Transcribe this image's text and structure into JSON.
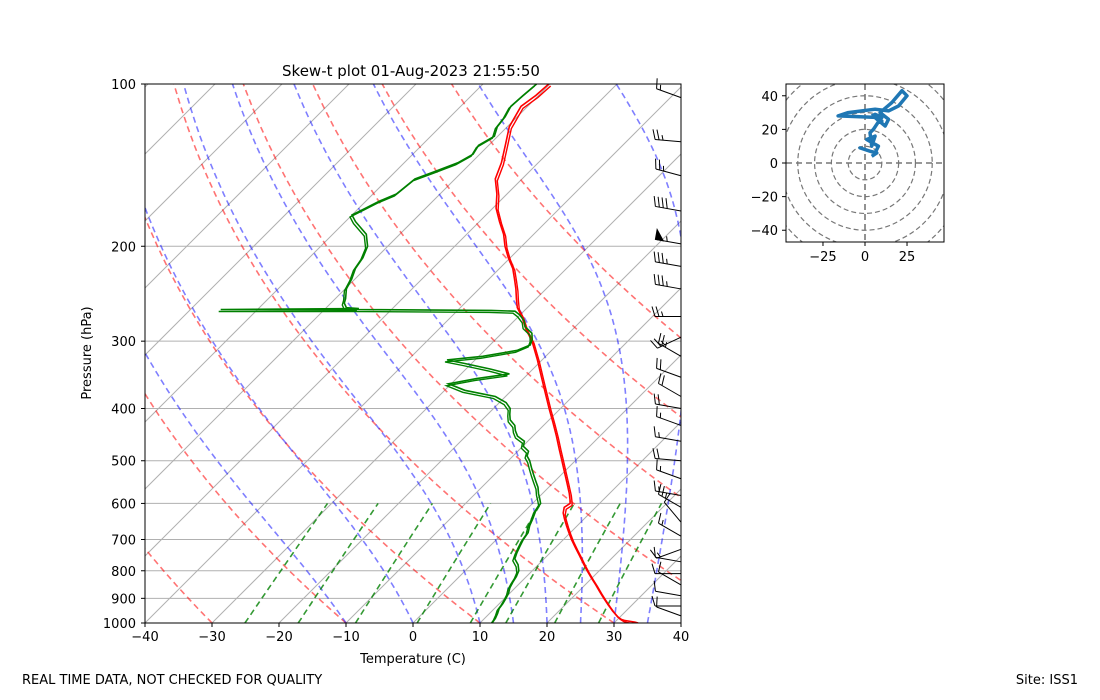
{
  "chart_data": [
    {
      "type": "line",
      "subtype": "skew-t log-p",
      "title": "Skew-t plot 01-Aug-2023 21:55:50",
      "xlabel": "Temperature (C)",
      "ylabel": "Pressure (hPa)",
      "xlim": [
        -40,
        40
      ],
      "ylim": [
        1000,
        100
      ],
      "x_ticks": [
        -40,
        -30,
        -20,
        -10,
        0,
        10,
        20,
        30,
        40
      ],
      "y_ticks": [
        100,
        200,
        300,
        400,
        500,
        600,
        700,
        800,
        900,
        1000
      ],
      "x_tick_labels": [
        "−40",
        "−30",
        "−20",
        "−10",
        "0",
        "10",
        "20",
        "30",
        "40"
      ],
      "y_tick_labels": [
        "100",
        "200",
        "300",
        "400",
        "500",
        "600",
        "700",
        "800",
        "900",
        "1000"
      ],
      "skew": 45,
      "series": [
        {
          "name": "Temperature",
          "color": "#ff0000",
          "points": [
            [
              1000,
              33.6
            ],
            [
              996,
              33
            ],
            [
              990,
              31.3
            ],
            [
              985,
              30.6
            ],
            [
              975,
              29.7
            ],
            [
              950,
              28
            ],
            [
              925,
              26.4
            ],
            [
              900,
              24.8
            ],
            [
              875,
              23.2
            ],
            [
              850,
              21.6
            ],
            [
              825,
              19.9
            ],
            [
              800,
              18.2
            ],
            [
              775,
              16.5
            ],
            [
              750,
              14.8
            ],
            [
              725,
              13
            ],
            [
              700,
              11.2
            ],
            [
              680,
              9.8
            ],
            [
              660,
              8.4
            ],
            [
              640,
              7
            ],
            [
              625,
              6
            ],
            [
              610,
              5.3
            ],
            [
              600,
              5.6
            ],
            [
              590,
              5
            ],
            [
              575,
              4
            ],
            [
              550,
              2.1
            ],
            [
              525,
              0.1
            ],
            [
              500,
              -2
            ],
            [
              475,
              -4.2
            ],
            [
              450,
              -6.5
            ],
            [
              425,
              -9
            ],
            [
              400,
              -11.7
            ],
            [
              375,
              -14.5
            ],
            [
              350,
              -17.5
            ],
            [
              325,
              -20.7
            ],
            [
              300,
              -24.3
            ],
            [
              285,
              -27
            ],
            [
              270,
              -29.5
            ],
            [
              260,
              -31.5
            ],
            [
              250,
              -33
            ],
            [
              240,
              -34.5
            ],
            [
              230,
              -36.2
            ],
            [
              220,
              -38
            ],
            [
              210,
              -40.3
            ],
            [
              200,
              -42.5
            ],
            [
              190,
              -44.5
            ],
            [
              180,
              -47
            ],
            [
              170,
              -49.5
            ],
            [
              160,
              -51.5
            ],
            [
              150,
              -54
            ],
            [
              140,
              -55.5
            ],
            [
              130,
              -57.5
            ],
            [
              120,
              -59.7
            ],
            [
              110,
              -61
            ],
            [
              105,
              -60.4
            ],
            [
              100,
              -60.2
            ]
          ]
        },
        {
          "name": "Dewpoint",
          "color": "#008000",
          "points": [
            [
              1000,
              11.8
            ],
            [
              980,
              11.6
            ],
            [
              960,
              11.2
            ],
            [
              940,
              10.7
            ],
            [
              920,
              10.5
            ],
            [
              900,
              10.2
            ],
            [
              880,
              9.8
            ],
            [
              860,
              9.2
            ],
            [
              840,
              8.8
            ],
            [
              820,
              8.5
            ],
            [
              800,
              8
            ],
            [
              780,
              7
            ],
            [
              760,
              5.6
            ],
            [
              740,
              5
            ],
            [
              720,
              4.5
            ],
            [
              700,
              4
            ],
            [
              680,
              3.7
            ],
            [
              660,
              2.9
            ],
            [
              640,
              2.3
            ],
            [
              620,
              1.6
            ],
            [
              600,
              1.2
            ],
            [
              590,
              0.5
            ],
            [
              575,
              -0.6
            ],
            [
              560,
              -1.6
            ],
            [
              545,
              -2.9
            ],
            [
              530,
              -4.2
            ],
            [
              515,
              -5.5
            ],
            [
              500,
              -6.8
            ],
            [
              490,
              -7.9
            ],
            [
              480,
              -8.4
            ],
            [
              470,
              -9.9
            ],
            [
              460,
              -10.5
            ],
            [
              450,
              -12.3
            ],
            [
              440,
              -13.4
            ],
            [
              430,
              -14.3
            ],
            [
              420,
              -15.8
            ],
            [
              410,
              -16.7
            ],
            [
              400,
              -17.5
            ],
            [
              390,
              -19
            ],
            [
              380,
              -21.5
            ],
            [
              370,
              -27
            ],
            [
              360,
              -30.4
            ],
            [
              352,
              -27
            ],
            [
              345,
              -22.8
            ],
            [
              338,
              -26.3
            ],
            [
              330,
              -31
            ],
            [
              325,
              -34.2
            ],
            [
              320,
              -29.4
            ],
            [
              312,
              -25.1
            ],
            [
              305,
              -24
            ],
            [
              298,
              -24.5
            ],
            [
              290,
              -25.5
            ],
            [
              282,
              -27.5
            ],
            [
              275,
              -28.5
            ],
            [
              268,
              -30.1
            ],
            [
              264,
              -31.3
            ],
            [
              263,
              -35
            ],
            [
              262,
              -55
            ],
            [
              262,
              -75.5
            ],
            [
              261,
              -55
            ],
            [
              260,
              -57
            ],
            [
              255,
              -58
            ],
            [
              250,
              -58.5
            ],
            [
              240,
              -59.8
            ],
            [
              230,
              -60.5
            ],
            [
              220,
              -61.5
            ],
            [
              210,
              -62
            ],
            [
              200,
              -63
            ],
            [
              190,
              -65
            ],
            [
              180,
              -68.5
            ],
            [
              175,
              -70
            ],
            [
              170,
              -69
            ],
            [
              165,
              -68
            ],
            [
              160,
              -66.5
            ],
            [
              150,
              -66
            ],
            [
              145,
              -64
            ],
            [
              140,
              -62
            ],
            [
              135,
              -61
            ],
            [
              130,
              -61.5
            ],
            [
              125,
              -60.5
            ],
            [
              120,
              -61.5
            ],
            [
              115,
              -61.8
            ],
            [
              110,
              -62.5
            ],
            [
              105,
              -62.3
            ],
            [
              100,
              -62
            ]
          ]
        }
      ],
      "dry_adiabats_theta_c": [
        -30,
        -10,
        10,
        30,
        50,
        70,
        90,
        110
      ],
      "moist_adiabats_start_c": [
        -10,
        0,
        10,
        15,
        20,
        25,
        30,
        35
      ],
      "mixing_ratio_g_per_kg": [
        0.5,
        1,
        2,
        4,
        7,
        10,
        16,
        24
      ],
      "isotherms_c": [
        -130,
        -120,
        -110,
        -100,
        -90,
        -80,
        -70,
        -60,
        -50,
        -40,
        -30,
        -20,
        -10,
        0,
        10,
        20,
        30,
        40
      ],
      "wind_barbs": [
        {
          "p": 106,
          "speed": 15,
          "dir": 290
        },
        {
          "p": 128,
          "speed": 25,
          "dir": 275
        },
        {
          "p": 148,
          "speed": 25,
          "dir": 285
        },
        {
          "p": 172,
          "speed": 40,
          "dir": 280
        },
        {
          "p": 198,
          "speed": 55,
          "dir": 280
        },
        {
          "p": 218,
          "speed": 35,
          "dir": 280
        },
        {
          "p": 240,
          "speed": 35,
          "dir": 280
        },
        {
          "p": 270,
          "speed": 25,
          "dir": 270
        },
        {
          "p": 295,
          "speed": 25,
          "dir": 245
        },
        {
          "p": 320,
          "speed": 25,
          "dir": 300
        },
        {
          "p": 350,
          "speed": 20,
          "dir": 290
        },
        {
          "p": 380,
          "speed": 20,
          "dir": 300
        },
        {
          "p": 400,
          "speed": 20,
          "dir": 280
        },
        {
          "p": 430,
          "speed": 15,
          "dir": 290
        },
        {
          "p": 460,
          "speed": 15,
          "dir": 280
        },
        {
          "p": 500,
          "speed": 20,
          "dir": 275
        },
        {
          "p": 540,
          "speed": 15,
          "dir": 290
        },
        {
          "p": 580,
          "speed": 15,
          "dir": 280
        },
        {
          "p": 610,
          "speed": 25,
          "dir": 300
        },
        {
          "p": 650,
          "speed": 10,
          "dir": 320
        },
        {
          "p": 690,
          "speed": 15,
          "dir": 300
        },
        {
          "p": 730,
          "speed": 15,
          "dir": 250
        },
        {
          "p": 770,
          "speed": 10,
          "dir": 280
        },
        {
          "p": 810,
          "speed": 10,
          "dir": 270
        },
        {
          "p": 850,
          "speed": 10,
          "dir": 300
        },
        {
          "p": 890,
          "speed": 10,
          "dir": 280
        },
        {
          "p": 930,
          "speed": 10,
          "dir": 270
        },
        {
          "p": 970,
          "speed": 10,
          "dir": 290
        }
      ]
    },
    {
      "type": "line",
      "subtype": "hodograph",
      "title": "",
      "xlim": [
        -47,
        47
      ],
      "ylim": [
        -47,
        47
      ],
      "x_ticks": [
        -25,
        0,
        25
      ],
      "y_ticks": [
        -40,
        -20,
        0,
        20,
        40
      ],
      "x_tick_labels": [
        "−25",
        "0",
        "25"
      ],
      "y_tick_labels": [
        "−40",
        "−20",
        "0",
        "20",
        "40"
      ],
      "rings": [
        10,
        20,
        30,
        40,
        50,
        60
      ],
      "color": "#1f77b4",
      "u": [
        4,
        7,
        3,
        -3,
        6,
        8,
        1,
        6,
        4,
        3,
        5,
        9,
        10,
        6,
        12,
        14,
        9,
        16,
        22,
        25,
        20,
        14,
        6,
        -10,
        -16,
        10,
        6,
        4
      ],
      "v": [
        4,
        6,
        7,
        9,
        6,
        10,
        14,
        16,
        10,
        18,
        20,
        26,
        25,
        27,
        22,
        26,
        30,
        36,
        43,
        40,
        34,
        31,
        32,
        30,
        28,
        27,
        29,
        28
      ]
    }
  ],
  "footer": {
    "left": "REAL TIME DATA, NOT CHECKED FOR QUALITY",
    "right": "Site: ISS1"
  }
}
